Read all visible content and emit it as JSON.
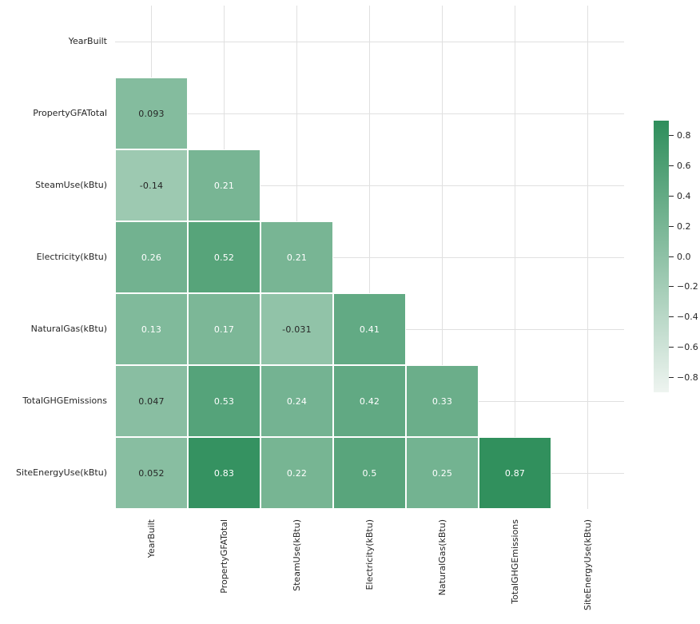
{
  "figure": {
    "background_color": "#ffffff",
    "grid_color": "#e0e0e0",
    "tick_label_color": "#262626",
    "cell_border_color": "#ffffff",
    "annotation_dark_color": "#262626",
    "annotation_light_color": "#ffffff"
  },
  "chart_data": {
    "type": "heatmap",
    "subtype": "correlation-matrix-lower-triangle",
    "title": "",
    "grid": true,
    "variables": [
      "YearBuilt",
      "PropertyGFATotal",
      "SteamUse(kBtu)",
      "Electricity(kBtu)",
      "NaturalGas(kBtu)",
      "TotalGHGEmissions",
      "SiteEnergyUse(kBtu)"
    ],
    "mask": "upper triangle and diagonal hidden",
    "cells": [
      {
        "row": 1,
        "col": 0,
        "value": 0.093,
        "label": "0.093"
      },
      {
        "row": 2,
        "col": 0,
        "value": -0.14,
        "label": "-0.14"
      },
      {
        "row": 2,
        "col": 1,
        "value": 0.21,
        "label": "0.21"
      },
      {
        "row": 3,
        "col": 0,
        "value": 0.26,
        "label": "0.26"
      },
      {
        "row": 3,
        "col": 1,
        "value": 0.52,
        "label": "0.52"
      },
      {
        "row": 3,
        "col": 2,
        "value": 0.21,
        "label": "0.21"
      },
      {
        "row": 4,
        "col": 0,
        "value": 0.13,
        "label": "0.13"
      },
      {
        "row": 4,
        "col": 1,
        "value": 0.17,
        "label": "0.17"
      },
      {
        "row": 4,
        "col": 2,
        "value": -0.031,
        "label": "-0.031"
      },
      {
        "row": 4,
        "col": 3,
        "value": 0.41,
        "label": "0.41"
      },
      {
        "row": 5,
        "col": 0,
        "value": 0.047,
        "label": "0.047"
      },
      {
        "row": 5,
        "col": 1,
        "value": 0.53,
        "label": "0.53"
      },
      {
        "row": 5,
        "col": 2,
        "value": 0.24,
        "label": "0.24"
      },
      {
        "row": 5,
        "col": 3,
        "value": 0.42,
        "label": "0.42"
      },
      {
        "row": 5,
        "col": 4,
        "value": 0.33,
        "label": "0.33"
      },
      {
        "row": 6,
        "col": 0,
        "value": 0.052,
        "label": "0.052"
      },
      {
        "row": 6,
        "col": 1,
        "value": 0.83,
        "label": "0.83"
      },
      {
        "row": 6,
        "col": 2,
        "value": 0.22,
        "label": "0.22"
      },
      {
        "row": 6,
        "col": 3,
        "value": 0.5,
        "label": "0.5"
      },
      {
        "row": 6,
        "col": 4,
        "value": 0.25,
        "label": "0.25"
      },
      {
        "row": 6,
        "col": 5,
        "value": 0.87,
        "label": "0.87"
      }
    ],
    "colormap": {
      "low_color": "#eef4f0",
      "high_color": "#2e8e5b",
      "vmin": -0.9,
      "vmax": 0.9
    },
    "colorbar": {
      "position": "right",
      "tick_values": [
        0.8,
        0.6,
        0.4,
        0.2,
        0.0,
        -0.2,
        -0.4,
        -0.6,
        -0.8
      ],
      "tick_labels": [
        "0.8",
        "0.6",
        "0.4",
        "0.2",
        "0.0",
        "−0.2",
        "−0.4",
        "−0.6",
        "−0.8"
      ]
    }
  }
}
